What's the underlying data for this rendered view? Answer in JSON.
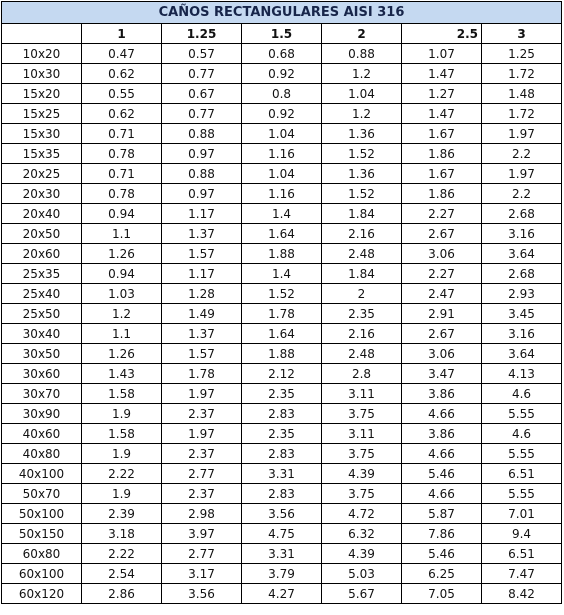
{
  "table": {
    "title": "CAÑOS RECTANGULARES AISI 316",
    "columns": [
      "1",
      "1.25",
      "1.5",
      "2",
      "2.5",
      "3"
    ],
    "rows": [
      [
        "10x20",
        0.47,
        0.57,
        0.68,
        0.88,
        1.07,
        1.25
      ],
      [
        "10x30",
        0.62,
        0.77,
        0.92,
        1.2,
        1.47,
        1.72
      ],
      [
        "15x20",
        0.55,
        0.67,
        0.8,
        1.04,
        1.27,
        1.48
      ],
      [
        "15x25",
        0.62,
        0.77,
        0.92,
        1.2,
        1.47,
        1.72
      ],
      [
        "15x30",
        0.71,
        0.88,
        1.04,
        1.36,
        1.67,
        1.97
      ],
      [
        "15x35",
        0.78,
        0.97,
        1.16,
        1.52,
        1.86,
        2.2
      ],
      [
        "20x25",
        0.71,
        0.88,
        1.04,
        1.36,
        1.67,
        1.97
      ],
      [
        "20x30",
        0.78,
        0.97,
        1.16,
        1.52,
        1.86,
        2.2
      ],
      [
        "20x40",
        0.94,
        1.17,
        1.4,
        1.84,
        2.27,
        2.68
      ],
      [
        "20x50",
        1.1,
        1.37,
        1.64,
        2.16,
        2.67,
        3.16
      ],
      [
        "20x60",
        1.26,
        1.57,
        1.88,
        2.48,
        3.06,
        3.64
      ],
      [
        "25x35",
        0.94,
        1.17,
        1.4,
        1.84,
        2.27,
        2.68
      ],
      [
        "25x40",
        1.03,
        1.28,
        1.52,
        2,
        2.47,
        2.93
      ],
      [
        "25x50",
        1.2,
        1.49,
        1.78,
        2.35,
        2.91,
        3.45
      ],
      [
        "30x40",
        1.1,
        1.37,
        1.64,
        2.16,
        2.67,
        3.16
      ],
      [
        "30x50",
        1.26,
        1.57,
        1.88,
        2.48,
        3.06,
        3.64
      ],
      [
        "30x60",
        1.43,
        1.78,
        2.12,
        2.8,
        3.47,
        4.13
      ],
      [
        "30x70",
        1.58,
        1.97,
        2.35,
        3.11,
        3.86,
        4.6
      ],
      [
        "30x90",
        1.9,
        2.37,
        2.83,
        3.75,
        4.66,
        5.55
      ],
      [
        "40x60",
        1.58,
        1.97,
        2.35,
        3.11,
        3.86,
        4.6
      ],
      [
        "40x80",
        1.9,
        2.37,
        2.83,
        3.75,
        4.66,
        5.55
      ],
      [
        "40x100",
        2.22,
        2.77,
        3.31,
        4.39,
        5.46,
        6.51
      ],
      [
        "50x70",
        1.9,
        2.37,
        2.83,
        3.75,
        4.66,
        5.55
      ],
      [
        "50x100",
        2.39,
        2.98,
        3.56,
        4.72,
        5.87,
        7.01
      ],
      [
        "50x150",
        3.18,
        3.97,
        4.75,
        6.32,
        7.86,
        9.4
      ],
      [
        "60x80",
        2.22,
        2.77,
        3.31,
        4.39,
        5.46,
        6.51
      ],
      [
        "60x100",
        2.54,
        3.17,
        3.79,
        5.03,
        6.25,
        7.47
      ],
      [
        "60x120",
        2.86,
        3.56,
        4.27,
        5.67,
        7.05,
        8.42
      ]
    ]
  }
}
